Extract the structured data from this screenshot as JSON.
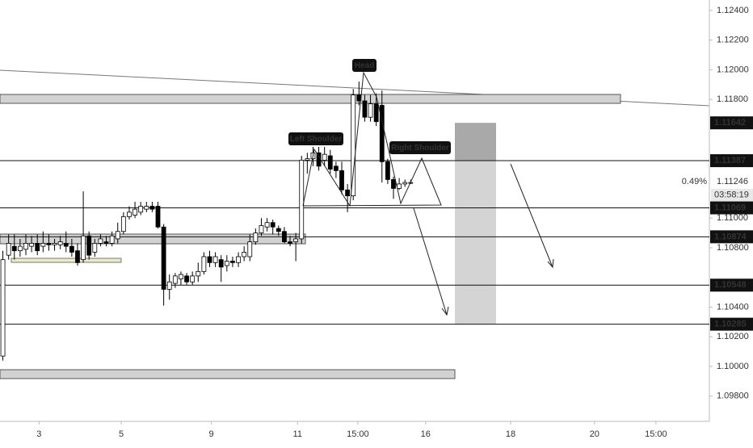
{
  "chart_data": {
    "type": "candlestick",
    "open": [
      1.1007,
      1.1075,
      1.1081,
      1.1078,
      1.1079,
      1.1081,
      1.1083,
      1.1081,
      1.1083,
      1.1082,
      1.1082,
      1.1083,
      1.1081,
      1.1078,
      1.1072,
      1.1088,
      1.1077,
      1.1083,
      1.1084,
      1.1083,
      1.1086,
      1.1091,
      1.1101,
      1.1102,
      1.1104,
      1.1106,
      1.1108,
      1.1108,
      1.1094,
      1.1052,
      1.1056,
      1.1059,
      1.1061,
      1.1057,
      1.1061,
      1.1064,
      1.1074,
      1.107,
      1.1072,
      1.1068,
      1.1071,
      1.107,
      1.1074,
      1.1074,
      1.1084,
      1.109,
      1.1094,
      1.1097,
      1.1093,
      1.1091,
      1.1084,
      1.1084,
      1.1086,
      1.1139,
      1.114,
      1.1144,
      1.1139,
      1.1142,
      1.1135,
      1.1132,
      1.1119,
      1.1115,
      1.1183,
      1.1179,
      1.1168,
      1.1177,
      1.1176,
      1.1138,
      1.1126,
      1.112,
      1.1123,
      1.1124
    ],
    "high": [
      1.1078,
      1.1089,
      1.1089,
      1.1086,
      1.1089,
      1.1088,
      1.1089,
      1.1091,
      1.1089,
      1.1086,
      1.1088,
      1.1091,
      1.1086,
      1.1083,
      1.1118,
      1.1091,
      1.1086,
      1.1089,
      1.1088,
      1.1091,
      1.1097,
      1.1104,
      1.1108,
      1.1111,
      1.1111,
      1.1111,
      1.1111,
      1.1111,
      1.1096,
      1.1062,
      1.1063,
      1.1064,
      1.1063,
      1.1064,
      1.107,
      1.1077,
      1.1078,
      1.1077,
      1.1075,
      1.1075,
      1.1074,
      1.1077,
      1.1081,
      1.1089,
      1.1093,
      1.11,
      1.11,
      1.1099,
      1.1095,
      1.1094,
      1.1088,
      1.109,
      1.1142,
      1.1144,
      1.1148,
      1.1148,
      1.1148,
      1.1146,
      1.1138,
      1.1138,
      1.1123,
      1.1187,
      1.1192,
      1.1183,
      1.1183,
      1.1184,
      1.1186,
      1.114,
      1.1128,
      1.1127,
      1.1126,
      1.1126
    ],
    "low": [
      1.1004,
      1.1072,
      1.1072,
      1.1074,
      1.1075,
      1.1077,
      1.1075,
      1.1077,
      1.1078,
      1.1078,
      1.1079,
      1.1077,
      1.1074,
      1.1068,
      1.107,
      1.1072,
      1.1074,
      1.1081,
      1.1081,
      1.1081,
      1.1083,
      1.1089,
      1.1099,
      1.11,
      1.1102,
      1.1104,
      1.1104,
      1.1093,
      1.1041,
      1.1045,
      1.1053,
      1.1055,
      1.1055,
      1.1055,
      1.1057,
      1.1062,
      1.1067,
      1.1067,
      1.1057,
      1.1064,
      1.1067,
      1.1067,
      1.1071,
      1.1071,
      1.1082,
      1.1088,
      1.1091,
      1.1089,
      1.1088,
      1.1083,
      1.1081,
      1.1071,
      1.1083,
      1.113,
      1.1135,
      1.1132,
      1.1135,
      1.113,
      1.1127,
      1.1116,
      1.1104,
      1.1112,
      1.1176,
      1.1165,
      1.1165,
      1.1162,
      1.1124,
      1.1123,
      1.1113,
      1.1119,
      1.1121,
      1.1123
    ],
    "close": [
      1.1072,
      1.1083,
      1.1078,
      1.1081,
      1.1083,
      1.1083,
      1.1078,
      1.1083,
      1.1082,
      1.1083,
      1.1084,
      1.1081,
      1.1077,
      1.107,
      1.1088,
      1.1075,
      1.1083,
      1.1086,
      1.1083,
      1.1088,
      1.1091,
      1.1101,
      1.1104,
      1.1106,
      1.1108,
      1.1108,
      1.1106,
      1.1094,
      1.1052,
      1.1057,
      1.1061,
      1.1062,
      1.1057,
      1.1061,
      1.1064,
      1.1074,
      1.107,
      1.1074,
      1.1067,
      1.1071,
      1.107,
      1.1074,
      1.1077,
      1.1084,
      1.109,
      1.1095,
      1.1097,
      1.1094,
      1.1091,
      1.1084,
      1.1083,
      1.1086,
      1.1139,
      1.114,
      1.1144,
      1.1135,
      1.1143,
      1.1133,
      1.1132,
      1.1119,
      1.1115,
      1.1183,
      1.1179,
      1.1168,
      1.1177,
      1.1165,
      1.1138,
      1.1126,
      1.112,
      1.1123,
      1.1124,
      1.1124
    ],
    "up_color": "#ffffff",
    "down_color": "#000000",
    "xlim": [
      -0.5,
      123
    ],
    "xticks": [
      {
        "value": 6.3,
        "label": "3"
      },
      {
        "value": 20.6,
        "label": "5"
      },
      {
        "value": 36.3,
        "label": "9"
      },
      {
        "value": 51.3,
        "label": "11"
      },
      {
        "value": 61.8,
        "label": "15:00"
      },
      {
        "value": 73.6,
        "label": "16"
      },
      {
        "value": 88.4,
        "label": "18"
      },
      {
        "value": 103.0,
        "label": "20"
      },
      {
        "value": 113.7,
        "label": "15:00"
      }
    ],
    "ylim": [
      1.0963,
      1.1247
    ],
    "yticks": [
      {
        "value": 1.124,
        "label": "1.12400"
      },
      {
        "value": 1.122,
        "label": "1.12200"
      },
      {
        "value": 1.12,
        "label": "1.12000"
      },
      {
        "value": 1.118,
        "label": "1.11800"
      },
      {
        "value": 1.11,
        "label": "1.11000"
      },
      {
        "value": 1.108,
        "label": "1.10800"
      },
      {
        "value": 1.104,
        "label": "1.10400"
      },
      {
        "value": 1.102,
        "label": "1.10200"
      },
      {
        "value": 1.1,
        "label": "1.10000"
      },
      {
        "value": 1.098,
        "label": "1.09800"
      }
    ],
    "levels": [
      1.11642,
      1.11387,
      1.11069,
      1.10874,
      1.10548,
      1.10285
    ],
    "last_price": 1.11246,
    "change": "0.49%",
    "countdown": "03:58:19",
    "annotations": [
      "Head",
      "Left Shoulder",
      "Right Shoulder"
    ]
  }
}
